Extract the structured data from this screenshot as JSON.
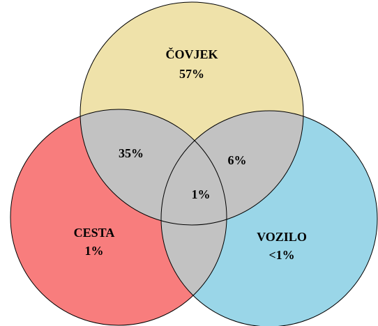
{
  "sets": [
    {
      "label": "ČOVJEK",
      "value": "57%"
    },
    {
      "label": "CESTA",
      "value": "1%"
    },
    {
      "label": "VOZILO",
      "value": "<1%"
    }
  ],
  "intersections": {
    "covjek_cesta": "35%",
    "covjek_vozilo": "6%",
    "all": "1%"
  }
}
